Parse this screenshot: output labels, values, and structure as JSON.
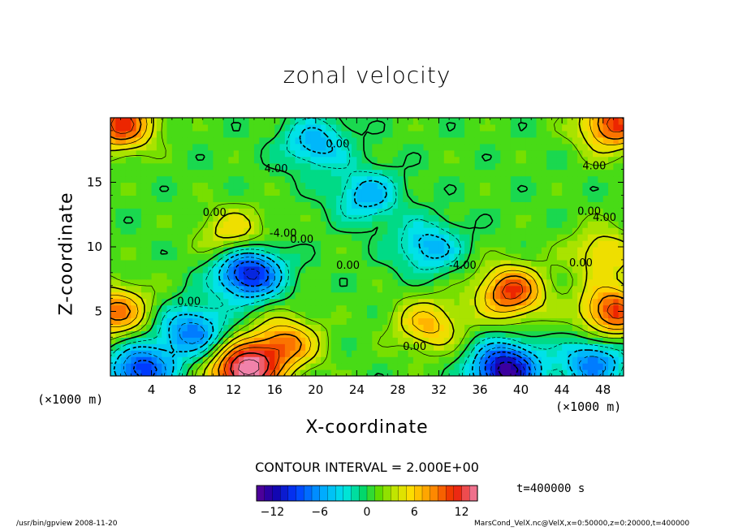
{
  "chart_data": {
    "type": "heatmap",
    "title": "zonal velocity",
    "xlabel": "X-coordinate",
    "ylabel": "Z-coordinate",
    "x_unit_label": "(×1000 m)",
    "xlim": [
      0,
      50
    ],
    "ylim": [
      0,
      20
    ],
    "x_ticks": [
      4,
      8,
      12,
      16,
      20,
      24,
      28,
      32,
      36,
      40,
      44,
      48
    ],
    "y_ticks": [
      5,
      10,
      15
    ],
    "contour_interval_label": "CONTOUR INTERVAL = 2.000E+00",
    "contour_labels": [
      "0.00",
      "4.00",
      "-4.00"
    ],
    "colorbar": {
      "range": [
        -14,
        14
      ],
      "ticks": [
        -12,
        -6,
        0,
        6,
        12
      ]
    },
    "features": [
      {
        "x": 13.5,
        "z": 8,
        "value": -12
      },
      {
        "x": 38.5,
        "z": 0.5,
        "value": -14
      },
      {
        "x": 13,
        "z": 0.5,
        "value": 14
      },
      {
        "x": 39,
        "z": 6.5,
        "value": 10
      },
      {
        "x": 49,
        "z": 5,
        "value": 10
      },
      {
        "x": 0.5,
        "z": 5,
        "value": 8
      },
      {
        "x": 31,
        "z": 10,
        "value": -6
      },
      {
        "x": 25,
        "z": 14,
        "value": -6
      },
      {
        "x": 8,
        "z": 3.5,
        "value": -8
      },
      {
        "x": 17,
        "z": 2.5,
        "value": 8
      },
      {
        "x": 1,
        "z": 19.5,
        "value": 10
      },
      {
        "x": 49,
        "z": 19.5,
        "value": 10
      },
      {
        "x": 20,
        "z": 18,
        "value": -6
      },
      {
        "x": 48,
        "z": 9.5,
        "value": 5
      },
      {
        "x": 12,
        "z": 11,
        "value": 5
      },
      {
        "x": 31,
        "z": 4,
        "value": 6
      },
      {
        "x": 3,
        "z": 0.5,
        "value": -10
      },
      {
        "x": 47,
        "z": 1,
        "value": -8
      }
    ]
  },
  "time_label": "t=400000 s",
  "footer": {
    "left": "/usr/bin/gpview  2008-11-20",
    "right": "MarsCond_VelX.nc@VelX,x=0:50000,z=0:20000,t=400000"
  }
}
